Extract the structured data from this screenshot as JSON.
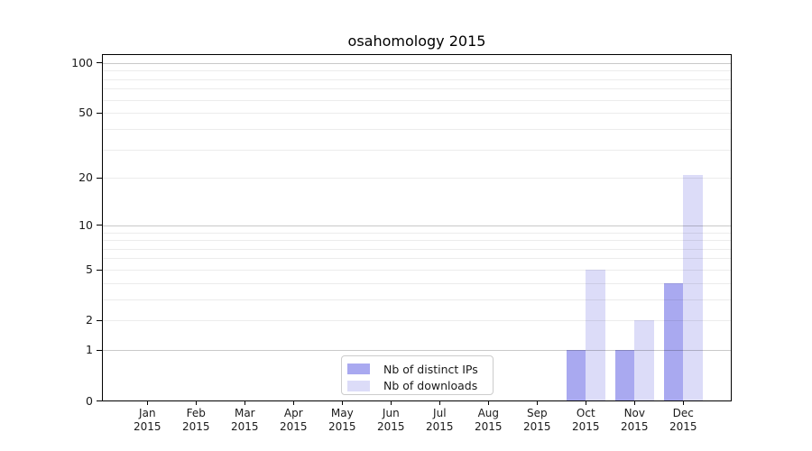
{
  "chart_data": {
    "type": "bar",
    "title": "osahomology 2015",
    "categories": [
      "Jan",
      "Feb",
      "Mar",
      "Apr",
      "May",
      "Jun",
      "Jul",
      "Aug",
      "Sep",
      "Oct",
      "Nov",
      "Dec"
    ],
    "category_year": "2015",
    "series": [
      {
        "name": "Nb of distinct IPs",
        "color": "#a9a9f0",
        "values": [
          0,
          0,
          0,
          0,
          0,
          0,
          0,
          0,
          0,
          1,
          1,
          4
        ]
      },
      {
        "name": "Nb of downloads",
        "color": "#dcdcf8",
        "values": [
          0,
          0,
          0,
          0,
          0,
          0,
          0,
          0,
          0,
          5,
          2,
          21
        ]
      }
    ],
    "y_axis": {
      "scale": "log1p",
      "range": [
        0,
        100
      ],
      "ticks": [
        0,
        1,
        2,
        5,
        10,
        20,
        50,
        100
      ],
      "major_gridlines": [
        1,
        10,
        100
      ],
      "minor_gridlines": [
        2,
        3,
        4,
        5,
        6,
        7,
        8,
        9,
        20,
        30,
        40,
        50,
        60,
        70,
        80,
        90
      ]
    },
    "legend": {
      "position": "bottom-center",
      "entries": [
        "Nb of distinct IPs",
        "Nb of downloads"
      ]
    },
    "colors": {
      "grid_major": "#c9c9c9",
      "grid_minor": "#ececec",
      "axis": "#000000",
      "text": "#1a1a1a",
      "legend_border": "#cccccc",
      "background": "#ffffff"
    }
  }
}
